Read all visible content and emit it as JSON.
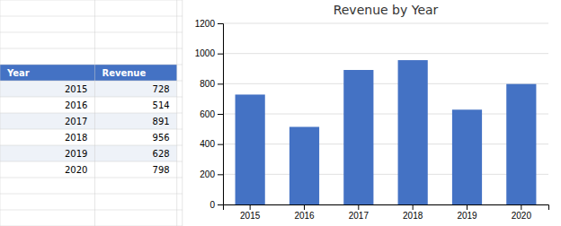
{
  "chart_data": [
    {
      "type": "table",
      "columns": [
        "Year",
        "Revenue"
      ],
      "categories": [
        "2015",
        "2016",
        "2017",
        "2018",
        "2019",
        "2020"
      ],
      "values": [
        728,
        514,
        891,
        956,
        628,
        798
      ],
      "color": "#4472C4"
    },
    {
      "type": "bar",
      "title": "Revenue by Year",
      "categories": [
        "2015",
        "2016",
        "2017",
        "2018",
        "2019",
        "2020"
      ],
      "values": [
        728,
        514,
        891,
        956,
        628,
        798
      ],
      "color": "#4472C4",
      "ylim": [
        0,
        1200
      ],
      "yticks": [
        0,
        200,
        400,
        600,
        800,
        1000,
        1200
      ],
      "grid": true
    }
  ]
}
